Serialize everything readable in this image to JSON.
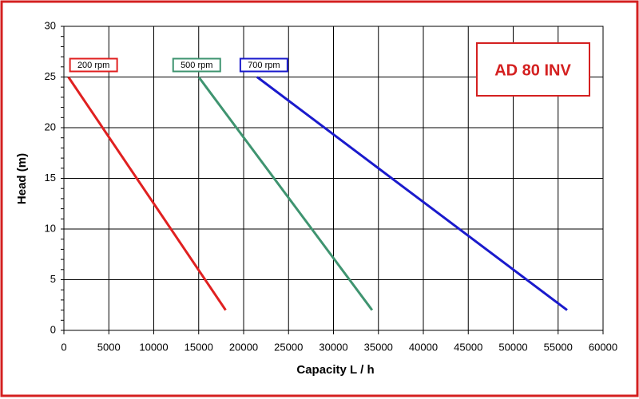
{
  "chart_data": {
    "type": "line",
    "title": "AD 80 INV",
    "x_label": "Capacity  L / h",
    "y_label": "Head (m)",
    "series": [
      {
        "name": "200 rpm",
        "color": "#e02020",
        "x": [
          500,
          18000
        ],
        "values": [
          25,
          2
        ]
      },
      {
        "name": "500 rpm",
        "color": "#3f9470",
        "x": [
          15000,
          34300
        ],
        "values": [
          25,
          2
        ]
      },
      {
        "name": "700 rpm",
        "color": "#1a1acc",
        "x": [
          21500,
          56000
        ],
        "values": [
          25,
          2
        ]
      }
    ],
    "xlim": [
      0,
      60000
    ],
    "xticks": [
      0,
      5000,
      10000,
      15000,
      20000,
      25000,
      30000,
      35000,
      40000,
      45000,
      50000,
      55000,
      60000
    ],
    "ylim": [
      0,
      30
    ],
    "yticks": [
      0,
      5,
      10,
      15,
      20,
      25,
      30
    ],
    "grid": true
  }
}
